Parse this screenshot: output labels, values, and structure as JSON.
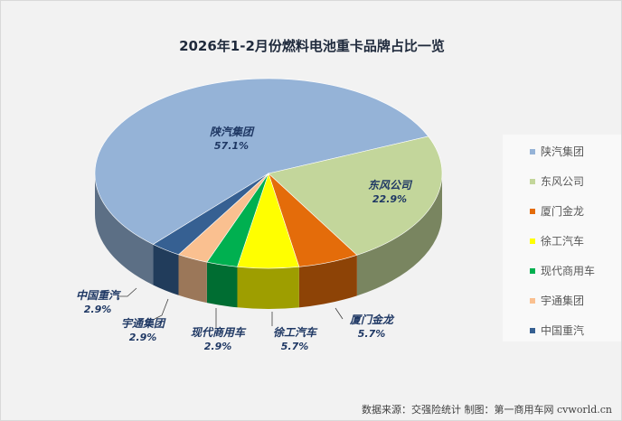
{
  "chart_data": {
    "type": "pie",
    "title": "2026年1-2月份燃料电池重卡品牌占比一览",
    "categories": [
      "陕汽集团",
      "东风公司",
      "厦门金龙",
      "徐工汽车",
      "现代商用车",
      "宇通集团",
      "中国重汽"
    ],
    "values": [
      57.1,
      22.9,
      5.7,
      5.7,
      2.9,
      2.9,
      2.9
    ],
    "labels": [
      "57.1%",
      "22.9%",
      "5.7%",
      "5.7%",
      "2.9%",
      "2.9%",
      "2.9%"
    ],
    "colors": [
      "#95b3d7",
      "#c3d69b",
      "#e46c0a",
      "#ffff00",
      "#00b050",
      "#fac090",
      "#366092"
    ],
    "legend": "right",
    "style": "3d"
  },
  "source": "数据来源：交强险统计 制图：第一商用车网 cvworld.cn"
}
